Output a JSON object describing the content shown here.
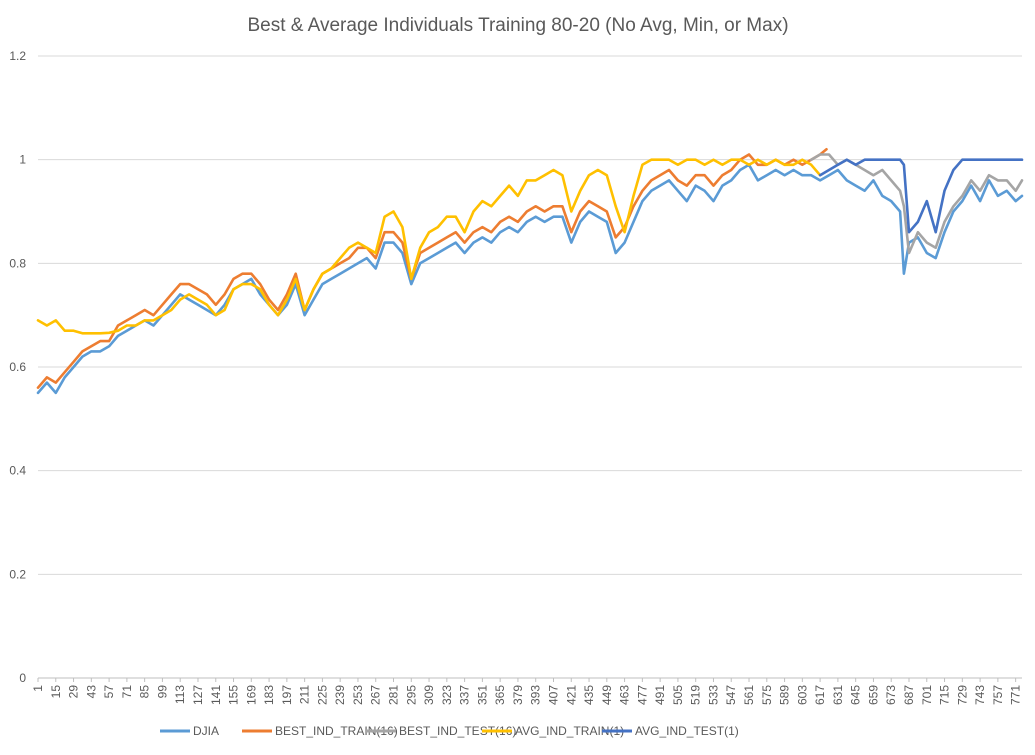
{
  "chart_data": {
    "type": "line",
    "title": "Best & Average Individuals Training 80-20 (No Avg, Min, or Max)",
    "xlabel": "",
    "ylabel": "",
    "ylim": [
      0,
      1.2
    ],
    "yticks": [
      "0",
      "0.2",
      "0.4",
      "0.6",
      "0.8",
      "1",
      "1.2"
    ],
    "xlim": [
      1,
      776
    ],
    "xtick_start": 1,
    "xtick_step": 14,
    "xtick_count": 56,
    "grid": true,
    "legend_position": "bottom",
    "series": [
      {
        "name": "DJIA",
        "color": "#5b9bd5",
        "x": [
          1,
          8,
          15,
          22,
          29,
          36,
          43,
          50,
          57,
          64,
          71,
          78,
          85,
          92,
          99,
          106,
          113,
          120,
          127,
          134,
          141,
          148,
          155,
          162,
          169,
          176,
          183,
          190,
          197,
          204,
          211,
          218,
          225,
          232,
          239,
          246,
          253,
          260,
          267,
          274,
          281,
          288,
          295,
          302,
          309,
          316,
          323,
          330,
          337,
          344,
          351,
          358,
          365,
          372,
          379,
          386,
          393,
          400,
          407,
          414,
          421,
          428,
          435,
          442,
          449,
          456,
          463,
          470,
          477,
          484,
          491,
          498,
          505,
          512,
          519,
          526,
          533,
          540,
          547,
          554,
          561,
          568,
          575,
          582,
          589,
          596,
          603,
          610,
          617,
          624,
          631,
          638,
          645,
          652,
          659,
          666,
          673,
          680,
          683,
          687,
          694,
          701,
          708,
          715,
          722,
          729,
          736,
          743,
          750,
          757,
          764,
          771,
          776
        ],
        "y": [
          0.55,
          0.57,
          0.55,
          0.58,
          0.6,
          0.62,
          0.63,
          0.63,
          0.64,
          0.66,
          0.67,
          0.68,
          0.69,
          0.68,
          0.7,
          0.72,
          0.74,
          0.73,
          0.72,
          0.71,
          0.7,
          0.72,
          0.75,
          0.76,
          0.77,
          0.74,
          0.72,
          0.7,
          0.72,
          0.76,
          0.7,
          0.73,
          0.76,
          0.77,
          0.78,
          0.79,
          0.8,
          0.81,
          0.79,
          0.84,
          0.84,
          0.82,
          0.76,
          0.8,
          0.81,
          0.82,
          0.83,
          0.84,
          0.82,
          0.84,
          0.85,
          0.84,
          0.86,
          0.87,
          0.86,
          0.88,
          0.89,
          0.88,
          0.89,
          0.89,
          0.84,
          0.88,
          0.9,
          0.89,
          0.88,
          0.82,
          0.84,
          0.88,
          0.92,
          0.94,
          0.95,
          0.96,
          0.94,
          0.92,
          0.95,
          0.94,
          0.92,
          0.95,
          0.96,
          0.98,
          0.99,
          0.96,
          0.97,
          0.98,
          0.97,
          0.98,
          0.97,
          0.97,
          0.96,
          0.97,
          0.98,
          0.96,
          0.95,
          0.94,
          0.96,
          0.93,
          0.92,
          0.9,
          0.78,
          0.84,
          0.85,
          0.82,
          0.81,
          0.86,
          0.9,
          0.92,
          0.95,
          0.92,
          0.96,
          0.93,
          0.94,
          0.92,
          0.93
        ]
      },
      {
        "name": "BEST_IND_TRAIN(16)",
        "color": "#ed7d31",
        "x": [
          1,
          8,
          15,
          22,
          29,
          36,
          43,
          50,
          57,
          64,
          71,
          78,
          85,
          92,
          99,
          106,
          113,
          120,
          127,
          134,
          141,
          148,
          155,
          162,
          169,
          176,
          183,
          190,
          197,
          204,
          211,
          218,
          225,
          232,
          239,
          246,
          253,
          260,
          267,
          274,
          281,
          288,
          295,
          302,
          309,
          316,
          323,
          330,
          337,
          344,
          351,
          358,
          365,
          372,
          379,
          386,
          393,
          400,
          407,
          414,
          421,
          428,
          435,
          442,
          449,
          456,
          463,
          470,
          477,
          484,
          491,
          498,
          505,
          512,
          519,
          526,
          533,
          540,
          547,
          554,
          561,
          568,
          575,
          582,
          589,
          596,
          603,
          610,
          617,
          622
        ],
        "y": [
          0.56,
          0.58,
          0.57,
          0.59,
          0.61,
          0.63,
          0.64,
          0.65,
          0.65,
          0.68,
          0.69,
          0.7,
          0.71,
          0.7,
          0.72,
          0.74,
          0.76,
          0.76,
          0.75,
          0.74,
          0.72,
          0.74,
          0.77,
          0.78,
          0.78,
          0.76,
          0.73,
          0.71,
          0.74,
          0.78,
          0.71,
          0.75,
          0.78,
          0.79,
          0.8,
          0.81,
          0.83,
          0.83,
          0.81,
          0.86,
          0.86,
          0.84,
          0.77,
          0.82,
          0.83,
          0.84,
          0.85,
          0.86,
          0.84,
          0.86,
          0.87,
          0.86,
          0.88,
          0.89,
          0.88,
          0.9,
          0.91,
          0.9,
          0.91,
          0.91,
          0.86,
          0.9,
          0.92,
          0.91,
          0.9,
          0.85,
          0.87,
          0.91,
          0.94,
          0.96,
          0.97,
          0.98,
          0.96,
          0.95,
          0.97,
          0.97,
          0.95,
          0.97,
          0.98,
          1.0,
          1.01,
          0.99,
          0.99,
          1.0,
          0.99,
          1.0,
          0.99,
          1.0,
          1.01,
          1.02
        ]
      },
      {
        "name": "BEST_IND_TEST(16)",
        "color": "#a5a5a5",
        "x": [
          610,
          617,
          624,
          631,
          638,
          645,
          652,
          659,
          666,
          673,
          680,
          683,
          687,
          694,
          701,
          708,
          715,
          722,
          729,
          736,
          743,
          750,
          757,
          764,
          771,
          776
        ],
        "y": [
          1.0,
          1.01,
          1.01,
          0.99,
          1.0,
          0.99,
          0.98,
          0.97,
          0.98,
          0.96,
          0.94,
          0.91,
          0.82,
          0.86,
          0.84,
          0.83,
          0.88,
          0.91,
          0.93,
          0.96,
          0.94,
          0.97,
          0.96,
          0.96,
          0.94,
          0.96
        ]
      },
      {
        "name": "AVG_IND_TRAIN(1)",
        "color": "#ffc000",
        "x": [
          1,
          8,
          15,
          22,
          29,
          36,
          43,
          50,
          57,
          64,
          71,
          78,
          85,
          92,
          99,
          106,
          113,
          120,
          127,
          134,
          141,
          148,
          155,
          162,
          169,
          176,
          183,
          190,
          197,
          204,
          211,
          218,
          225,
          232,
          239,
          246,
          253,
          260,
          267,
          274,
          281,
          288,
          295,
          302,
          309,
          316,
          323,
          330,
          337,
          344,
          351,
          358,
          365,
          372,
          379,
          386,
          393,
          400,
          407,
          414,
          421,
          428,
          435,
          442,
          449,
          456,
          463,
          470,
          477,
          484,
          491,
          498,
          505,
          512,
          519,
          526,
          533,
          540,
          547,
          554,
          561,
          568,
          575,
          582,
          589,
          596,
          603,
          610,
          617
        ],
        "y": [
          0.69,
          0.68,
          0.69,
          0.67,
          0.67,
          0.665,
          0.665,
          0.665,
          0.666,
          0.67,
          0.68,
          0.68,
          0.69,
          0.69,
          0.7,
          0.71,
          0.73,
          0.74,
          0.73,
          0.72,
          0.7,
          0.71,
          0.75,
          0.76,
          0.76,
          0.75,
          0.72,
          0.7,
          0.73,
          0.77,
          0.71,
          0.75,
          0.78,
          0.79,
          0.81,
          0.83,
          0.84,
          0.83,
          0.82,
          0.89,
          0.9,
          0.87,
          0.77,
          0.83,
          0.86,
          0.87,
          0.89,
          0.89,
          0.86,
          0.9,
          0.92,
          0.91,
          0.93,
          0.95,
          0.93,
          0.96,
          0.96,
          0.97,
          0.98,
          0.97,
          0.9,
          0.94,
          0.97,
          0.98,
          0.97,
          0.91,
          0.86,
          0.93,
          0.99,
          1.0,
          1.0,
          1.0,
          0.99,
          1.0,
          1.0,
          0.99,
          1.0,
          0.99,
          1.0,
          1.0,
          0.99,
          1.0,
          0.99,
          1.0,
          0.99,
          0.99,
          1.0,
          0.99,
          0.97
        ]
      },
      {
        "name": "AVG_IND_TEST(1)",
        "color": "#4472c4",
        "x": [
          617,
          624,
          631,
          638,
          645,
          652,
          659,
          666,
          673,
          680,
          683,
          687,
          694,
          701,
          708,
          715,
          722,
          729,
          736,
          743,
          750,
          757,
          764,
          771,
          776
        ],
        "y": [
          0.97,
          0.98,
          0.99,
          1.0,
          0.99,
          1.0,
          1.0,
          1.0,
          1.0,
          1.0,
          0.99,
          0.86,
          0.88,
          0.92,
          0.86,
          0.94,
          0.98,
          1.0,
          1.0,
          1.0,
          1.0,
          1.0,
          1.0,
          1.0,
          1.0
        ]
      }
    ]
  }
}
